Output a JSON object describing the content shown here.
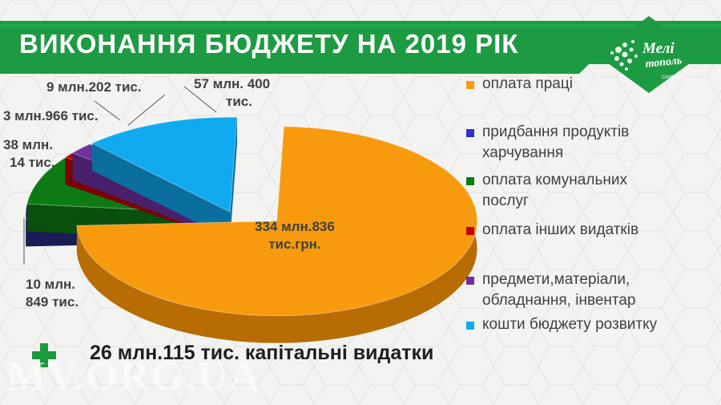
{
  "slide": {
    "title": "ВИКОНАННЯ БЮДЖЕТУ НА 2019 РІК",
    "logo_text_main": "Мелітополь",
    "logo_text_sub": "САМЕ ТУТ...",
    "capital_line": "26 млн.115 тис. капітальні видатки",
    "watermark": "MV.ORG.UA",
    "colors": {
      "title_bar": "#1d9b43",
      "accent_plus": "#1a9a3c"
    }
  },
  "chart_data": {
    "type": "pie",
    "title": "",
    "series": [
      {
        "name": "оплата праці",
        "value": 334836,
        "label_lines": [
          "334 млн.836",
          "тис.грн."
        ],
        "color": "#f79a0e",
        "side_color": "#b86c04"
      },
      {
        "name": "придбання продуктів харчування",
        "value": 10849,
        "label_lines": [
          "10 млн.",
          "849 тис."
        ],
        "color": "#2a2d84",
        "side_color": "#1b1c56"
      },
      {
        "name": "оплата комунальних послуг",
        "value": 38014,
        "label_lines": [
          "38 млн.",
          "14 тис."
        ],
        "color": "#0e7a14",
        "side_color": "#08500c"
      },
      {
        "name": "оплата інших видатків",
        "value": 3966,
        "label_lines": [
          "3 млн.966 тис."
        ],
        "color": "#c00000",
        "side_color": "#7d0000"
      },
      {
        "name": "предмети,матеріали, обладнання, інвентар",
        "value": 9202,
        "label_lines": [
          "9 млн.202 тис."
        ],
        "color": "#7030a0",
        "side_color": "#4a1f6b"
      },
      {
        "name": "кошти бюджету розвитку",
        "value": 57400,
        "label_lines": [
          "57 млн. 400",
          "тис."
        ],
        "color": "#10aaf0",
        "side_color": "#0a6f9e"
      }
    ],
    "legend": {
      "placement": "right",
      "entries": [
        {
          "lines": [
            "оплата праці"
          ],
          "color": "#f79a0e"
        },
        {
          "lines": [
            "придбання продуктів",
            "харчування"
          ],
          "color": "#3232c8"
        },
        {
          "lines": [
            "оплата комунальних",
            "послуг"
          ],
          "color": "#0e7a14"
        },
        {
          "lines": [
            "оплата інших видатків"
          ],
          "color": "#c00000"
        },
        {
          "lines": [
            "предмети,матеріали,",
            "обладнання, інвентар"
          ],
          "color": "#7030a0"
        },
        {
          "lines": [
            "кошти бюджету розвитку"
          ],
          "color": "#10aaf0"
        }
      ]
    }
  }
}
